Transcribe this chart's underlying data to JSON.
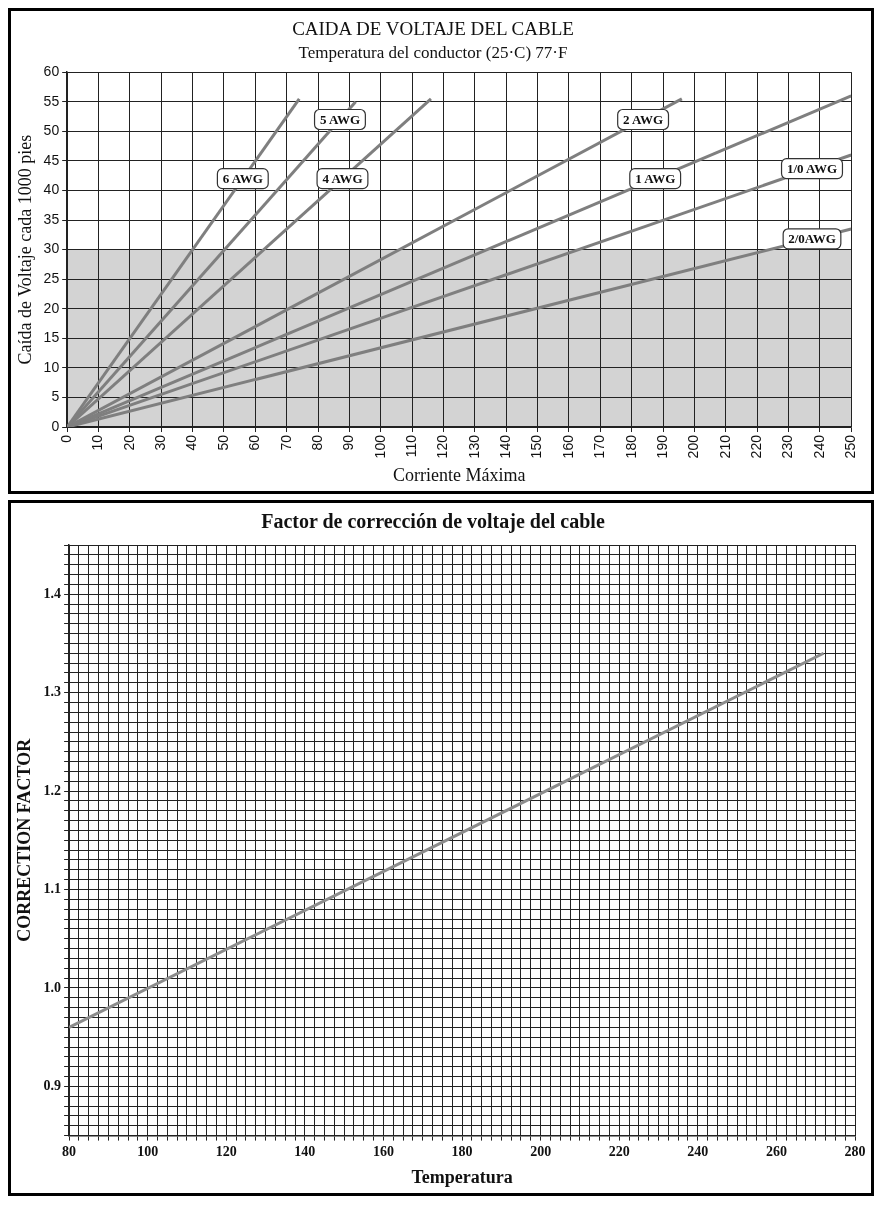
{
  "chart_data": [
    {
      "type": "line",
      "title": "CAIDA DE VOLTAJE DEL CABLE",
      "subtitle": "Temperatura del conductor (25·C) 77·F",
      "xlabel": "Corriente Máxima",
      "ylabel": "Caída de Voltaje cada 1000 pies",
      "xlim": [
        0,
        250
      ],
      "xticks": [
        0,
        10,
        20,
        30,
        40,
        50,
        60,
        70,
        80,
        90,
        100,
        110,
        120,
        130,
        140,
        150,
        160,
        170,
        180,
        190,
        200,
        210,
        220,
        230,
        240,
        250
      ],
      "ylim": [
        0,
        60
      ],
      "yticks": [
        0,
        5,
        10,
        15,
        20,
        25,
        30,
        35,
        40,
        45,
        50,
        55,
        60
      ],
      "grid": true,
      "legend": false,
      "bands": [
        {
          "axis": "y",
          "from": 0,
          "to": 30,
          "color": "#d3d3d3"
        }
      ],
      "series": [
        {
          "name": "6 AWG",
          "color": "#7f7f7f",
          "x": [
            0,
            74
          ],
          "values": [
            0,
            55.5
          ]
        },
        {
          "name": "5 AWG",
          "color": "#7f7f7f",
          "x": [
            0,
            92
          ],
          "values": [
            0,
            55
          ]
        },
        {
          "name": "4 AWG",
          "color": "#7f7f7f",
          "x": [
            0,
            116
          ],
          "values": [
            0,
            55.5
          ]
        },
        {
          "name": "2 AWG",
          "color": "#7f7f7f",
          "x": [
            0,
            196
          ],
          "values": [
            0,
            55.5
          ]
        },
        {
          "name": "1 AWG",
          "color": "#7f7f7f",
          "x": [
            0,
            250
          ],
          "values": [
            0,
            56
          ]
        },
        {
          "name": "1/0 AWG",
          "color": "#7f7f7f",
          "x": [
            0,
            250
          ],
          "values": [
            0,
            46
          ]
        },
        {
          "name": "2/0AWG",
          "color": "#7f7f7f",
          "x": [
            0,
            250
          ],
          "values": [
            0,
            33.5
          ]
        }
      ]
    },
    {
      "type": "line",
      "title": "Factor de corrección de voltaje del cable",
      "xlabel": "Temperatura",
      "ylabel": "CORRECTION FACTOR",
      "xlim": [
        80,
        280
      ],
      "xticks": [
        80,
        {
          "value": 82.5,
          "label": null
        },
        {
          "value": 85,
          "label": null
        },
        {
          "value": 87.5,
          "label": null
        },
        {
          "value": 90,
          "label": null
        },
        {
          "value": 92.5,
          "label": null
        },
        {
          "value": 95,
          "label": null
        },
        {
          "value": 97.5,
          "label": null
        },
        100,
        {
          "value": 102.5,
          "label": null
        },
        {
          "value": 105,
          "label": null
        },
        {
          "value": 107.5,
          "label": null
        },
        {
          "value": 110,
          "label": null
        },
        {
          "value": 112.5,
          "label": null
        },
        {
          "value": 115,
          "label": null
        },
        {
          "value": 117.5,
          "label": null
        },
        120,
        {
          "value": 122.5,
          "label": null
        },
        {
          "value": 125,
          "label": null
        },
        {
          "value": 127.5,
          "label": null
        },
        {
          "value": 130,
          "label": null
        },
        {
          "value": 132.5,
          "label": null
        },
        {
          "value": 135,
          "label": null
        },
        {
          "value": 137.5,
          "label": null
        },
        140,
        {
          "value": 142.5,
          "label": null
        },
        {
          "value": 145,
          "label": null
        },
        {
          "value": 147.5,
          "label": null
        },
        {
          "value": 150,
          "label": null
        },
        {
          "value": 152.5,
          "label": null
        },
        {
          "value": 155,
          "label": null
        },
        {
          "value": 157.5,
          "label": null
        },
        160,
        {
          "value": 162.5,
          "label": null
        },
        {
          "value": 165,
          "label": null
        },
        {
          "value": 167.5,
          "label": null
        },
        {
          "value": 170,
          "label": null
        },
        {
          "value": 172.5,
          "label": null
        },
        {
          "value": 175,
          "label": null
        },
        {
          "value": 177.5,
          "label": null
        },
        180,
        {
          "value": 182.5,
          "label": null
        },
        {
          "value": 185,
          "label": null
        },
        {
          "value": 187.5,
          "label": null
        },
        {
          "value": 190,
          "label": null
        },
        {
          "value": 192.5,
          "label": null
        },
        {
          "value": 195,
          "label": null
        },
        {
          "value": 197.5,
          "label": null
        },
        200,
        {
          "value": 202.5,
          "label": null
        },
        {
          "value": 205,
          "label": null
        },
        {
          "value": 207.5,
          "label": null
        },
        {
          "value": 210,
          "label": null
        },
        {
          "value": 212.5,
          "label": null
        },
        {
          "value": 215,
          "label": null
        },
        {
          "value": 217.5,
          "label": null
        },
        220,
        {
          "value": 222.5,
          "label": null
        },
        {
          "value": 225,
          "label": null
        },
        {
          "value": 227.5,
          "label": null
        },
        {
          "value": 230,
          "label": null
        },
        {
          "value": 232.5,
          "label": null
        },
        {
          "value": 235,
          "label": null
        },
        {
          "value": 237.5,
          "label": null
        },
        240,
        {
          "value": 242.5,
          "label": null
        },
        {
          "value": 245,
          "label": null
        },
        {
          "value": 247.5,
          "label": null
        },
        {
          "value": 250,
          "label": null
        },
        {
          "value": 252.5,
          "label": null
        },
        {
          "value": 255,
          "label": null
        },
        {
          "value": 257.5,
          "label": null
        },
        260,
        {
          "value": 262.5,
          "label": null
        },
        {
          "value": 265,
          "label": null
        },
        {
          "value": 267.5,
          "label": null
        },
        {
          "value": 270,
          "label": null
        },
        {
          "value": 272.5,
          "label": null
        },
        {
          "value": 275,
          "label": null
        },
        {
          "value": 277.5,
          "label": null
        },
        280
      ],
      "ylim": [
        0.85,
        1.45
      ],
      "yticks": [
        {
          "value": 0.85,
          "label": null
        },
        {
          "value": 0.86,
          "label": null
        },
        {
          "value": 0.87,
          "label": null
        },
        {
          "value": 0.88,
          "label": null
        },
        {
          "value": 0.89,
          "label": null
        },
        0.9,
        {
          "value": 0.91,
          "label": null
        },
        {
          "value": 0.92,
          "label": null
        },
        {
          "value": 0.93,
          "label": null
        },
        {
          "value": 0.94,
          "label": null
        },
        {
          "value": 0.95,
          "label": null
        },
        {
          "value": 0.96,
          "label": null
        },
        {
          "value": 0.97,
          "label": null
        },
        {
          "value": 0.98,
          "label": null
        },
        {
          "value": 0.99,
          "label": null
        },
        {
          "value": 1,
          "label": "1.0"
        },
        {
          "value": 1.01,
          "label": null
        },
        {
          "value": 1.02,
          "label": null
        },
        {
          "value": 1.03,
          "label": null
        },
        {
          "value": 1.04,
          "label": null
        },
        {
          "value": 1.05,
          "label": null
        },
        {
          "value": 1.06,
          "label": null
        },
        {
          "value": 1.07,
          "label": null
        },
        {
          "value": 1.08,
          "label": null
        },
        {
          "value": 1.09,
          "label": null
        },
        1.1,
        {
          "value": 1.11,
          "label": null
        },
        {
          "value": 1.12,
          "label": null
        },
        {
          "value": 1.13,
          "label": null
        },
        {
          "value": 1.14,
          "label": null
        },
        {
          "value": 1.15,
          "label": null
        },
        {
          "value": 1.16,
          "label": null
        },
        {
          "value": 1.17,
          "label": null
        },
        {
          "value": 1.18,
          "label": null
        },
        {
          "value": 1.19,
          "label": null
        },
        1.2,
        {
          "value": 1.21,
          "label": null
        },
        {
          "value": 1.22,
          "label": null
        },
        {
          "value": 1.23,
          "label": null
        },
        {
          "value": 1.24,
          "label": null
        },
        {
          "value": 1.25,
          "label": null
        },
        {
          "value": 1.26,
          "label": null
        },
        {
          "value": 1.27,
          "label": null
        },
        {
          "value": 1.28,
          "label": null
        },
        {
          "value": 1.29,
          "label": null
        },
        1.3,
        {
          "value": 1.31,
          "label": null
        },
        {
          "value": 1.32,
          "label": null
        },
        {
          "value": 1.33,
          "label": null
        },
        {
          "value": 1.34,
          "label": null
        },
        {
          "value": 1.35,
          "label": null
        },
        {
          "value": 1.36,
          "label": null
        },
        {
          "value": 1.37,
          "label": null
        },
        {
          "value": 1.38,
          "label": null
        },
        {
          "value": 1.39,
          "label": null
        },
        1.4,
        {
          "value": 1.41,
          "label": null
        },
        {
          "value": 1.42,
          "label": null
        },
        {
          "value": 1.43,
          "label": null
        },
        {
          "value": 1.44,
          "label": null
        },
        {
          "value": 1.45,
          "label": null
        }
      ],
      "grid": true,
      "legend": false,
      "series": [
        {
          "color": "#8c8c8c",
          "x": [
            80,
            272
          ],
          "values": [
            0.96,
            1.34
          ]
        }
      ]
    }
  ]
}
